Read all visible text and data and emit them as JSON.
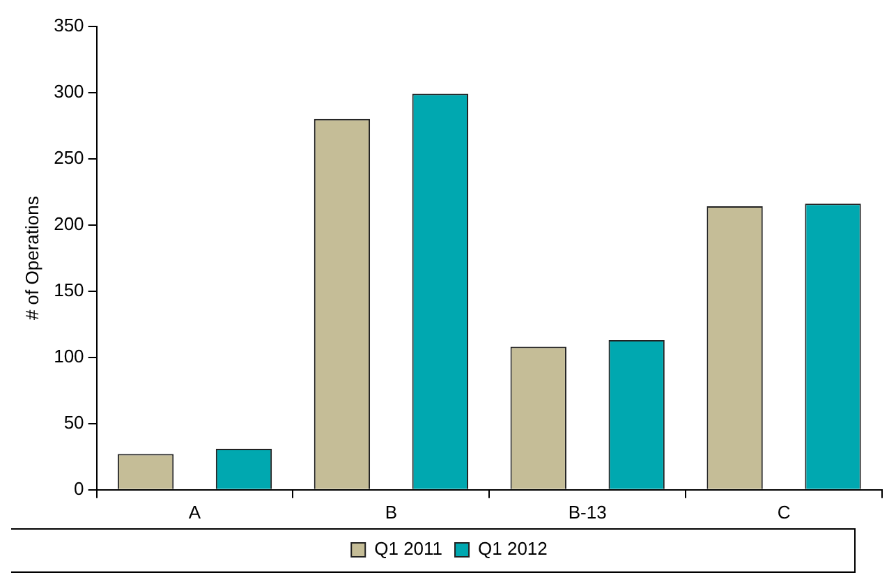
{
  "chart_data": {
    "type": "bar",
    "ylabel": "# of Operations",
    "categories": [
      "A",
      "B",
      "B-13",
      "C"
    ],
    "series": [
      {
        "name": "Q1 2011",
        "color": "#c5bd97",
        "values": [
          27,
          280,
          108,
          214
        ]
      },
      {
        "name": "Q1 2012",
        "color": "#00a8b0",
        "values": [
          31,
          299,
          113,
          216
        ]
      }
    ],
    "ylim": [
      0,
      350
    ],
    "yticks": [
      0,
      50,
      100,
      150,
      200,
      250,
      300,
      350
    ],
    "grid": false,
    "legend": "bottom"
  }
}
